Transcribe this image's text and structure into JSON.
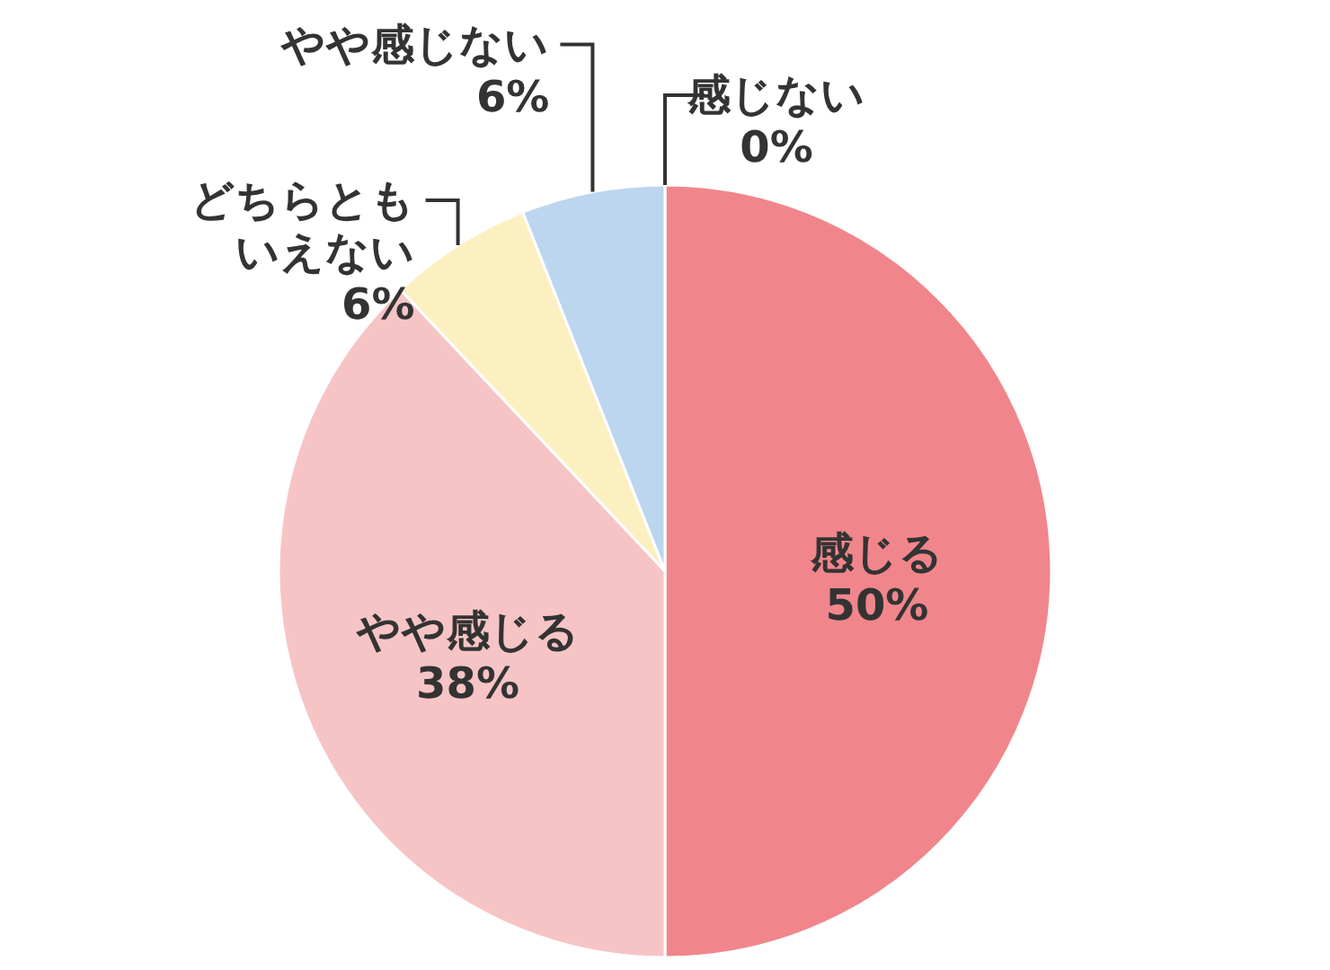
{
  "chart_data": {
    "type": "pie",
    "categories": [
      "感じる",
      "やや感じる",
      "どちらともいえない",
      "やや感じない",
      "感じない"
    ],
    "values": [
      50,
      38,
      6,
      6,
      0
    ],
    "value_labels": [
      "50%",
      "38%",
      "6%",
      "6%",
      "0%"
    ],
    "colors": [
      "#f0868b",
      "#f7c4c6",
      "#fdf0c0",
      "#bcd6f0",
      null
    ]
  }
}
